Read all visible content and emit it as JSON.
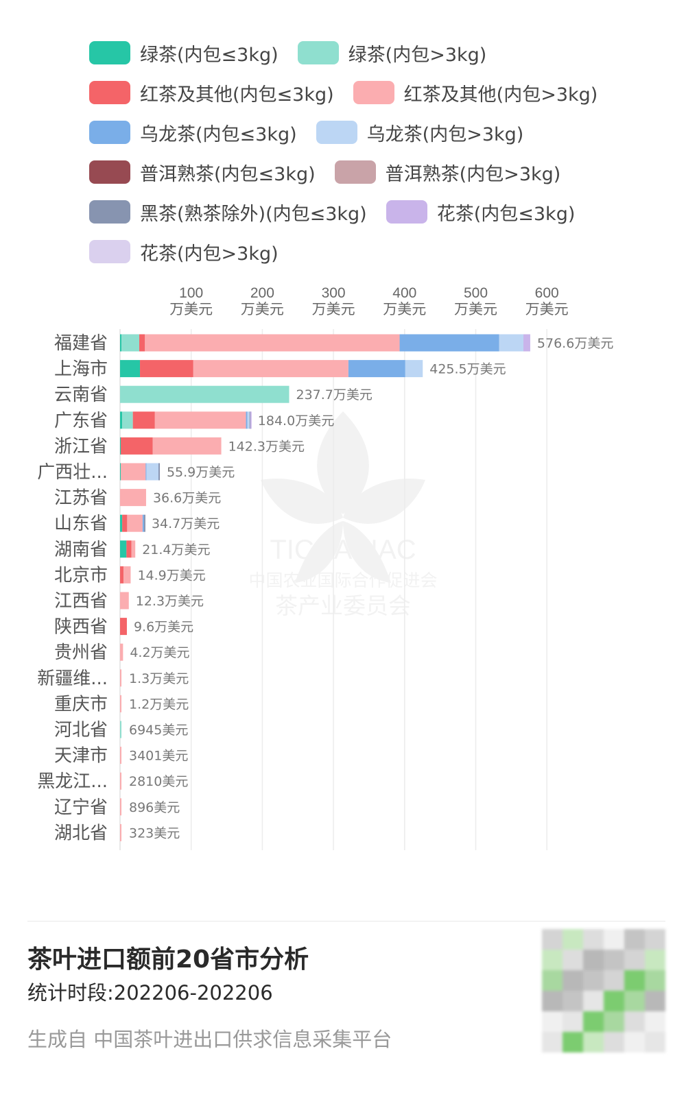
{
  "legend": [
    {
      "label": "绿茶(内包≤3kg)",
      "color": "#26c6a6"
    },
    {
      "label": "绿茶(内包>3kg)",
      "color": "#8fdfcf"
    },
    {
      "label": "红茶及其他(内包≤3kg)",
      "color": "#f46468"
    },
    {
      "label": "红茶及其他(内包>3kg)",
      "color": "#fbadb0"
    },
    {
      "label": "乌龙茶(内包≤3kg)",
      "color": "#7aaee8"
    },
    {
      "label": "乌龙茶(内包>3kg)",
      "color": "#bcd6f4"
    },
    {
      "label": "普洱熟茶(内包≤3kg)",
      "color": "#974a52"
    },
    {
      "label": "普洱熟茶(内包>3kg)",
      "color": "#c9a3a8"
    },
    {
      "label": "黑茶(熟茶除外)(内包≤3kg)",
      "color": "#8794b0"
    },
    {
      "label": "花茶(内包≤3kg)",
      "color": "#c9b4ea"
    },
    {
      "label": "花茶(内包>3kg)",
      "color": "#dad0ee"
    }
  ],
  "chart_data": {
    "type": "bar",
    "orientation": "horizontal",
    "stacked": true,
    "unit": "万美元",
    "xlim": [
      0,
      600
    ],
    "x_ticks": [
      {
        "value": 100,
        "num": "100",
        "unit": "万美元"
      },
      {
        "value": 200,
        "num": "200",
        "unit": "万美元"
      },
      {
        "value": 300,
        "num": "300",
        "unit": "万美元"
      },
      {
        "value": 400,
        "num": "400",
        "unit": "万美元"
      },
      {
        "value": 500,
        "num": "500",
        "unit": "万美元"
      },
      {
        "value": 600,
        "num": "600",
        "unit": "万美元"
      }
    ],
    "grid": true,
    "legend_position": "top",
    "categories": [
      "福建省",
      "上海市",
      "云南省",
      "广东省",
      "浙江省",
      "广西壮...",
      "江苏省",
      "山东省",
      "湖南省",
      "北京市",
      "江西省",
      "陕西省",
      "贵州省",
      "新疆维...",
      "重庆市",
      "河北省",
      "天津市",
      "黑龙江...",
      "辽宁省",
      "湖北省"
    ],
    "totals": [
      576.6,
      425.5,
      237.7,
      184.0,
      142.3,
      55.9,
      36.6,
      34.7,
      21.4,
      14.9,
      12.3,
      9.6,
      4.2,
      1.3,
      1.2,
      0.6945,
      0.3401,
      0.281,
      0.0896,
      0.0323
    ],
    "total_labels": [
      "576.6万美元",
      "425.5万美元",
      "237.7万美元",
      "184.0万美元",
      "142.3万美元",
      "55.9万美元",
      "36.6万美元",
      "34.7万美元",
      "21.4万美元",
      "14.9万美元",
      "12.3万美元",
      "9.6万美元",
      "4.2万美元",
      "1.3万美元",
      "1.2万美元",
      "6945美元",
      "3401美元",
      "2810美元",
      "896美元",
      "323美元"
    ],
    "series": [
      {
        "name": "绿茶(内包≤3kg)",
        "color": "#26c6a6",
        "values": [
          2,
          28,
          0,
          3,
          1,
          1,
          0,
          3,
          9,
          0,
          0,
          0,
          0,
          0,
          0,
          0,
          0,
          0,
          0,
          0
        ]
      },
      {
        "name": "绿茶(内包>3kg)",
        "color": "#8fdfcf",
        "values": [
          25,
          0,
          237.7,
          15,
          0,
          0,
          0,
          0,
          0,
          0,
          0,
          0,
          0,
          0,
          0,
          0.6945,
          0,
          0,
          0,
          0
        ]
      },
      {
        "name": "红茶及其他(内包≤3kg)",
        "color": "#f46468",
        "values": [
          8,
          75,
          0,
          31,
          45,
          0,
          0,
          7,
          7,
          5,
          0,
          9.6,
          0,
          0,
          0,
          0,
          0,
          0,
          0,
          0
        ]
      },
      {
        "name": "红茶及其他(内包>3kg)",
        "color": "#fbadb0",
        "values": [
          358,
          218,
          0,
          128,
          96.3,
          35,
          36.6,
          21.7,
          5.4,
          9.9,
          12.3,
          0,
          4.2,
          1.3,
          1.2,
          0,
          0.3401,
          0.281,
          0.0896,
          0.0323
        ]
      },
      {
        "name": "乌龙茶(内包≤3kg)",
        "color": "#7aaee8",
        "values": [
          140,
          80,
          0,
          2,
          0,
          1,
          0,
          2,
          0,
          0,
          0,
          0,
          0,
          0,
          0,
          0,
          0,
          0,
          0,
          0
        ]
      },
      {
        "name": "乌龙茶(内包>3kg)",
        "color": "#bcd6f4",
        "values": [
          34,
          24.5,
          0,
          3,
          0,
          17,
          0,
          0,
          0,
          0,
          0,
          0,
          0,
          0,
          0,
          0,
          0,
          0,
          0,
          0
        ]
      },
      {
        "name": "普洱熟茶(内包≤3kg)",
        "color": "#974a52",
        "values": [
          0,
          0,
          0,
          0,
          0,
          0,
          0,
          0,
          0,
          0,
          0,
          0,
          0,
          0,
          0,
          0,
          0,
          0,
          0,
          0
        ]
      },
      {
        "name": "普洱熟茶(内包>3kg)",
        "color": "#c9a3a8",
        "values": [
          0,
          0,
          0,
          0,
          0,
          0,
          0,
          0,
          0,
          0,
          0,
          0,
          0,
          0,
          0,
          0,
          0,
          0,
          0,
          0
        ]
      },
      {
        "name": "黑茶(熟茶除外)(内包≤3kg)",
        "color": "#8794b0",
        "values": [
          0,
          0,
          0,
          1,
          0,
          1.9,
          0,
          1,
          0,
          0,
          0,
          0,
          0,
          0,
          0,
          0,
          0,
          0,
          0,
          0
        ]
      },
      {
        "name": "花茶(内包≤3kg)",
        "color": "#c9b4ea",
        "values": [
          9.6,
          0,
          0,
          1,
          0,
          0,
          0,
          0,
          0,
          0,
          0,
          0,
          0,
          0,
          0,
          0,
          0,
          0,
          0,
          0
        ]
      },
      {
        "name": "花茶(内包>3kg)",
        "color": "#dad0ee",
        "values": [
          0,
          0,
          0,
          0,
          0,
          0,
          0,
          0,
          0,
          0,
          0,
          0,
          0,
          0,
          0,
          0,
          0,
          0,
          0,
          0
        ]
      }
    ]
  },
  "watermark": {
    "org": "TICCAPIAC",
    "line1": "中国农业国际合作促进会",
    "line2": "茶产业委员会"
  },
  "footer": {
    "title": "茶叶进口额前20省市分析",
    "period": "统计时段:202206-202206",
    "generated_by": "生成自 中国茶叶进出口供求信息采集平台"
  }
}
